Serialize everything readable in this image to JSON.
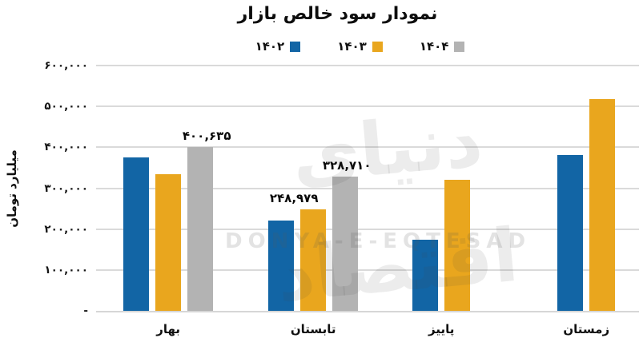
{
  "watermark": {
    "fa": "دنیای اقتصاد",
    "en": "DONYA-E-EQTESAD"
  },
  "chart_data": {
    "type": "bar",
    "title": "نمودار سود خالص بازار",
    "xlabel": "",
    "ylabel": "میلیارد تومان",
    "ymax": 600000,
    "ylim": [
      0,
      600000
    ],
    "grid": true,
    "legend_position": "top",
    "categories": [
      "بهار",
      "تابستان",
      "پاییز",
      "زمستان"
    ],
    "category_centers_pct": [
      13.3,
      40.0,
      63.6,
      90.3
    ],
    "yticks": [
      {
        "value": 600000,
        "label": "۶۰۰,۰۰۰"
      },
      {
        "value": 500000,
        "label": "۵۰۰,۰۰۰"
      },
      {
        "value": 400000,
        "label": "۴۰۰,۰۰۰"
      },
      {
        "value": 300000,
        "label": "۳۰۰,۰۰۰"
      },
      {
        "value": 200000,
        "label": "۲۰۰,۰۰۰"
      },
      {
        "value": 100000,
        "label": "۱۰۰,۰۰۰"
      },
      {
        "value": 0,
        "label": "-"
      }
    ],
    "series": [
      {
        "name": "۱۴۰۲",
        "color": "#1265a5",
        "values": [
          375000,
          220000,
          175000,
          382000
        ],
        "labels": [
          null,
          null,
          null,
          null
        ],
        "label_dx": [
          0,
          0,
          0,
          0
        ]
      },
      {
        "name": "۱۴۰۳",
        "color": "#e9a61e",
        "values": [
          335000,
          248979,
          320000,
          518000
        ],
        "labels": [
          null,
          "۲۴۸,۹۷۹",
          null,
          null
        ],
        "label_dx": [
          0,
          -24,
          0,
          0
        ]
      },
      {
        "name": "۱۴۰۴",
        "color": "#b3b3b3",
        "values": [
          400635,
          328710,
          null,
          null
        ],
        "labels": [
          "۴۰۰,۶۳۵",
          "۳۲۸,۷۱۰",
          null,
          null
        ],
        "label_dx": [
          8,
          2,
          0,
          0
        ]
      }
    ]
  }
}
